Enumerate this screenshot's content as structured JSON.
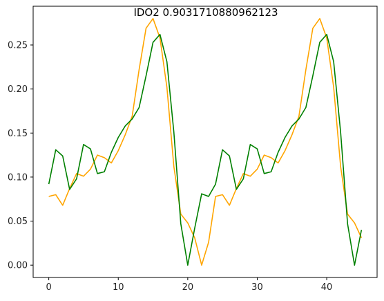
{
  "chart_data": {
    "type": "line",
    "title": "IDO2 0.9031710880962123",
    "xlabel": "",
    "ylabel": "",
    "xlim": [
      -2.25,
      47.25
    ],
    "ylim": [
      -0.014,
      0.294
    ],
    "x_ticks": [
      0,
      10,
      20,
      30,
      40
    ],
    "y_ticks": [
      0.0,
      0.05,
      0.1,
      0.15,
      0.2,
      0.25
    ],
    "x_tick_labels": [
      "0",
      "10",
      "20",
      "30",
      "40"
    ],
    "y_tick_labels": [
      "0.00",
      "0.05",
      "0.10",
      "0.15",
      "0.20",
      "0.25"
    ],
    "grid": false,
    "series": [
      {
        "color": "#FFA500",
        "values": [
          0.078,
          0.08,
          0.068,
          0.087,
          0.104,
          0.101,
          0.109,
          0.125,
          0.122,
          0.116,
          0.13,
          0.148,
          0.169,
          0.222,
          0.269,
          0.28,
          0.258,
          0.202,
          0.112,
          0.058,
          0.048,
          0.031,
          0.0,
          0.026,
          0.078,
          0.08,
          0.068,
          0.087,
          0.104,
          0.101,
          0.109,
          0.125,
          0.122,
          0.116,
          0.13,
          0.148,
          0.169,
          0.222,
          0.269,
          0.28,
          0.258,
          0.202,
          0.112,
          0.058,
          0.048,
          0.031
        ]
      },
      {
        "color": "#008000",
        "values": [
          0.092,
          0.131,
          0.124,
          0.086,
          0.098,
          0.137,
          0.132,
          0.104,
          0.106,
          0.128,
          0.145,
          0.158,
          0.166,
          0.179,
          0.215,
          0.253,
          0.262,
          0.231,
          0.151,
          0.047,
          0.0,
          0.042,
          0.081,
          0.078,
          0.092,
          0.131,
          0.124,
          0.086,
          0.098,
          0.137,
          0.132,
          0.104,
          0.106,
          0.128,
          0.145,
          0.158,
          0.166,
          0.179,
          0.215,
          0.253,
          0.262,
          0.231,
          0.151,
          0.047,
          0.0,
          0.04
        ]
      }
    ]
  }
}
